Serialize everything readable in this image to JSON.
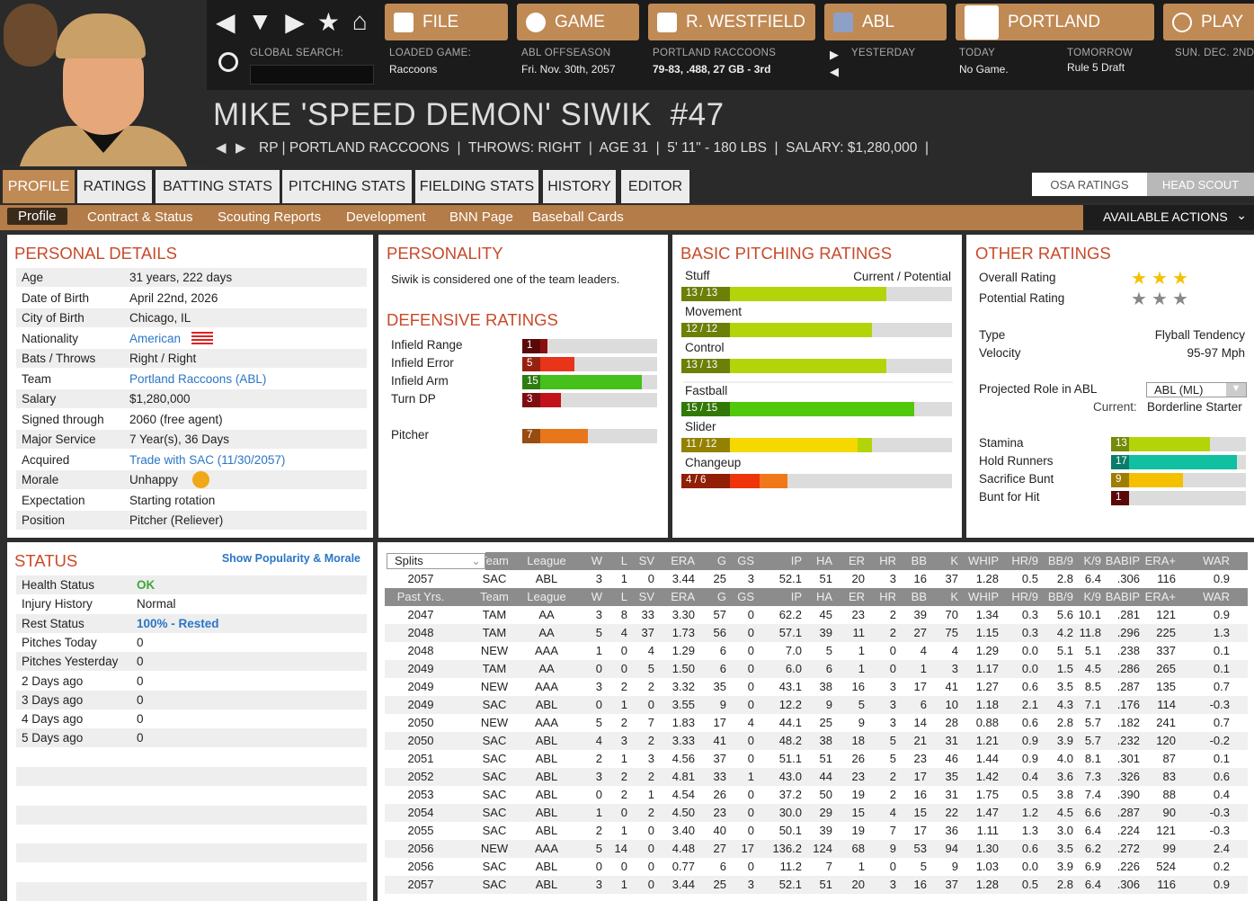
{
  "nav": {
    "file": "FILE",
    "game": "GAME",
    "manager": "R. WESTFIELD",
    "league": "ABL",
    "team": "PORTLAND",
    "play": "PLAY",
    "global_search_label": "GLOBAL SEARCH:",
    "loaded_game_label": "LOADED GAME:",
    "loaded_game": "Raccoons",
    "season_label": "ABL OFFSEASON",
    "date": "Fri. Nov. 30th, 2057",
    "team_label": "PORTLAND RACCOONS",
    "team_record": "79-83, .488, 27 GB - 3rd",
    "yesterday": "YESTERDAY",
    "today": "TODAY",
    "today_val": "No Game.",
    "tomorrow": "TOMORROW",
    "tomorrow_val": "Rule 5 Draft",
    "next_date": "SUN. DEC. 2ND"
  },
  "player": {
    "name": "MIKE 'SPEED DEMON' SIWIK  #47",
    "info": "RP | PORTLAND RACCOONS  |  THROWS: RIGHT  |  AGE 31  |  5' 11\" - 180 LBS  |  SALARY: $1,280,000  |"
  },
  "tabs": [
    "PROFILE",
    "RATINGS",
    "BATTING STATS",
    "PITCHING STATS",
    "FIELDING STATS",
    "HISTORY",
    "EDITOR"
  ],
  "rating_source": [
    "OSA RATINGS",
    "HEAD SCOUT"
  ],
  "subnav": [
    "Profile",
    "Contract & Status",
    "Scouting Reports",
    "Development",
    "BNN Page",
    "Baseball Cards"
  ],
  "available_actions": "AVAILABLE ACTIONS",
  "personal": {
    "title": "PERSONAL DETAILS",
    "rows": [
      [
        "Age",
        "31 years, 222 days"
      ],
      [
        "Date of Birth",
        "April 22nd, 2026"
      ],
      [
        "City of Birth",
        "Chicago, IL"
      ],
      [
        "Nationality",
        "American"
      ],
      [
        "Bats / Throws",
        "Right / Right"
      ],
      [
        "Team",
        "Portland Raccoons (ABL)"
      ],
      [
        "Salary",
        "$1,280,000"
      ],
      [
        "Signed through",
        "2060 (free agent)"
      ],
      [
        "Major Service",
        "7 Year(s), 36 Days"
      ],
      [
        "Acquired",
        "Trade with SAC (11/30/2057)"
      ],
      [
        "Morale",
        "Unhappy"
      ],
      [
        "Expectation",
        "Starting rotation"
      ],
      [
        "Position",
        "Pitcher (Reliever)"
      ]
    ]
  },
  "personality": {
    "title": "PERSONALITY",
    "text": "Siwik is considered one of the team leaders."
  },
  "defensive": {
    "title": "DEFENSIVE RATINGS",
    "rows": [
      [
        "Infield Range",
        1,
        "#8b0f0f"
      ],
      [
        "Infield Error",
        5,
        "#e8341a"
      ],
      [
        "Infield Arm",
        15,
        "#46c01a"
      ],
      [
        "Turn DP",
        3,
        "#c0141a"
      ],
      [
        "Pitcher",
        7,
        "#e8761a"
      ]
    ]
  },
  "pitching": {
    "title": "BASIC PITCHING RATINGS",
    "header": "Current / Potential",
    "rows": [
      {
        "label": "Stuff",
        "cur": 13,
        "pot": 13,
        "color": "#b4d40a"
      },
      {
        "label": "Movement",
        "cur": 12,
        "pot": 12,
        "color": "#b4d40a"
      },
      {
        "label": "Control",
        "cur": 13,
        "pot": 13,
        "color": "#b4d40a"
      },
      {
        "label": "Fastball",
        "cur": 15,
        "pot": 15,
        "color": "#52c80a"
      },
      {
        "label": "Slider",
        "cur": 11,
        "pot": 12,
        "color": "#f5d800"
      },
      {
        "label": "Changeup",
        "cur": 4,
        "pot": 6,
        "color": "#f0340a"
      }
    ]
  },
  "other": {
    "title": "OTHER RATINGS",
    "overall_label": "Overall Rating",
    "overall_stars": 3,
    "potential_label": "Potential Rating",
    "potential_stars": 3,
    "type_label": "Type",
    "type": "Flyball Tendency",
    "velocity_label": "Velocity",
    "velocity": "95-97 Mph",
    "role_label": "Projected Role in ABL",
    "role_select": "ABL (ML)",
    "current_label": "Current:",
    "current_role": "Borderline Starter",
    "bars": [
      [
        "Stamina",
        13,
        "#b4d40a"
      ],
      [
        "Hold Runners",
        17,
        "#10c0a0"
      ],
      [
        "Sacrifice Bunt",
        9,
        "#f5c000"
      ],
      [
        "Bunt for Hit",
        1,
        "#8b0f0f"
      ]
    ]
  },
  "status": {
    "title": "STATUS",
    "link": "Show Popularity & Morale",
    "rows": [
      [
        "Health Status",
        "OK"
      ],
      [
        "Injury History",
        "Normal"
      ],
      [
        "Rest Status",
        "100% - Rested"
      ],
      [
        "Pitches Today",
        "0"
      ],
      [
        "Pitches Yesterday",
        "0"
      ],
      [
        "2 Days ago",
        "0"
      ],
      [
        "3 Days ago",
        "0"
      ],
      [
        "4 Days ago",
        "0"
      ],
      [
        "5 Days ago",
        "0"
      ]
    ]
  },
  "stats": {
    "split_select": "Splits",
    "columns": [
      "Team",
      "League",
      "W",
      "L",
      "SV",
      "ERA",
      "G",
      "GS",
      "IP",
      "HA",
      "ER",
      "HR",
      "BB",
      "K",
      "WHIP",
      "HR/9",
      "BB/9",
      "K/9",
      "BABIP",
      "ERA+",
      "WAR"
    ],
    "past_label": "Past Yrs.",
    "current": [
      "2057",
      "SAC",
      "ABL",
      "3",
      "1",
      "0",
      "3.44",
      "25",
      "3",
      "52.1",
      "51",
      "20",
      "3",
      "16",
      "37",
      "1.28",
      "0.5",
      "2.8",
      "6.4",
      ".306",
      "116",
      "0.9"
    ],
    "rows": [
      [
        "2047",
        "TAM",
        "AA",
        "3",
        "8",
        "33",
        "3.30",
        "57",
        "0",
        "62.2",
        "45",
        "23",
        "2",
        "39",
        "70",
        "1.34",
        "0.3",
        "5.6",
        "10.1",
        ".281",
        "121",
        "0.9"
      ],
      [
        "2048",
        "TAM",
        "AA",
        "5",
        "4",
        "37",
        "1.73",
        "56",
        "0",
        "57.1",
        "39",
        "11",
        "2",
        "27",
        "75",
        "1.15",
        "0.3",
        "4.2",
        "11.8",
        ".296",
        "225",
        "1.3"
      ],
      [
        "2048",
        "NEW",
        "AAA",
        "1",
        "0",
        "4",
        "1.29",
        "6",
        "0",
        "7.0",
        "5",
        "1",
        "0",
        "4",
        "4",
        "1.29",
        "0.0",
        "5.1",
        "5.1",
        ".238",
        "337",
        "0.1"
      ],
      [
        "2049",
        "TAM",
        "AA",
        "0",
        "0",
        "5",
        "1.50",
        "6",
        "0",
        "6.0",
        "6",
        "1",
        "0",
        "1",
        "3",
        "1.17",
        "0.0",
        "1.5",
        "4.5",
        ".286",
        "265",
        "0.1"
      ],
      [
        "2049",
        "NEW",
        "AAA",
        "3",
        "2",
        "2",
        "3.32",
        "35",
        "0",
        "43.1",
        "38",
        "16",
        "3",
        "17",
        "41",
        "1.27",
        "0.6",
        "3.5",
        "8.5",
        ".287",
        "135",
        "0.7"
      ],
      [
        "2049",
        "SAC",
        "ABL",
        "0",
        "1",
        "0",
        "3.55",
        "9",
        "0",
        "12.2",
        "9",
        "5",
        "3",
        "6",
        "10",
        "1.18",
        "2.1",
        "4.3",
        "7.1",
        ".176",
        "114",
        "-0.3"
      ],
      [
        "2050",
        "NEW",
        "AAA",
        "5",
        "2",
        "7",
        "1.83",
        "17",
        "4",
        "44.1",
        "25",
        "9",
        "3",
        "14",
        "28",
        "0.88",
        "0.6",
        "2.8",
        "5.7",
        ".182",
        "241",
        "0.7"
      ],
      [
        "2050",
        "SAC",
        "ABL",
        "4",
        "3",
        "2",
        "3.33",
        "41",
        "0",
        "48.2",
        "38",
        "18",
        "5",
        "21",
        "31",
        "1.21",
        "0.9",
        "3.9",
        "5.7",
        ".232",
        "120",
        "-0.2"
      ],
      [
        "2051",
        "SAC",
        "ABL",
        "2",
        "1",
        "3",
        "4.56",
        "37",
        "0",
        "51.1",
        "51",
        "26",
        "5",
        "23",
        "46",
        "1.44",
        "0.9",
        "4.0",
        "8.1",
        ".301",
        "87",
        "0.1"
      ],
      [
        "2052",
        "SAC",
        "ABL",
        "3",
        "2",
        "2",
        "4.81",
        "33",
        "1",
        "43.0",
        "44",
        "23",
        "2",
        "17",
        "35",
        "1.42",
        "0.4",
        "3.6",
        "7.3",
        ".326",
        "83",
        "0.6"
      ],
      [
        "2053",
        "SAC",
        "ABL",
        "0",
        "2",
        "1",
        "4.54",
        "26",
        "0",
        "37.2",
        "50",
        "19",
        "2",
        "16",
        "31",
        "1.75",
        "0.5",
        "3.8",
        "7.4",
        ".390",
        "88",
        "0.4"
      ],
      [
        "2054",
        "SAC",
        "ABL",
        "1",
        "0",
        "2",
        "4.50",
        "23",
        "0",
        "30.0",
        "29",
        "15",
        "4",
        "15",
        "22",
        "1.47",
        "1.2",
        "4.5",
        "6.6",
        ".287",
        "90",
        "-0.3"
      ],
      [
        "2055",
        "SAC",
        "ABL",
        "2",
        "1",
        "0",
        "3.40",
        "40",
        "0",
        "50.1",
        "39",
        "19",
        "7",
        "17",
        "36",
        "1.11",
        "1.3",
        "3.0",
        "6.4",
        ".224",
        "121",
        "-0.3"
      ],
      [
        "2056",
        "NEW",
        "AAA",
        "5",
        "14",
        "0",
        "4.48",
        "27",
        "17",
        "136.2",
        "124",
        "68",
        "9",
        "53",
        "94",
        "1.30",
        "0.6",
        "3.5",
        "6.2",
        ".272",
        "99",
        "2.4"
      ],
      [
        "2056",
        "SAC",
        "ABL",
        "0",
        "0",
        "0",
        "0.77",
        "6",
        "0",
        "11.2",
        "7",
        "1",
        "0",
        "5",
        "9",
        "1.03",
        "0.0",
        "3.9",
        "6.9",
        ".226",
        "524",
        "0.2"
      ],
      [
        "2057",
        "SAC",
        "ABL",
        "3",
        "1",
        "0",
        "3.44",
        "25",
        "3",
        "52.1",
        "51",
        "20",
        "3",
        "16",
        "37",
        "1.28",
        "0.5",
        "2.8",
        "6.4",
        ".306",
        "116",
        "0.9"
      ]
    ]
  }
}
